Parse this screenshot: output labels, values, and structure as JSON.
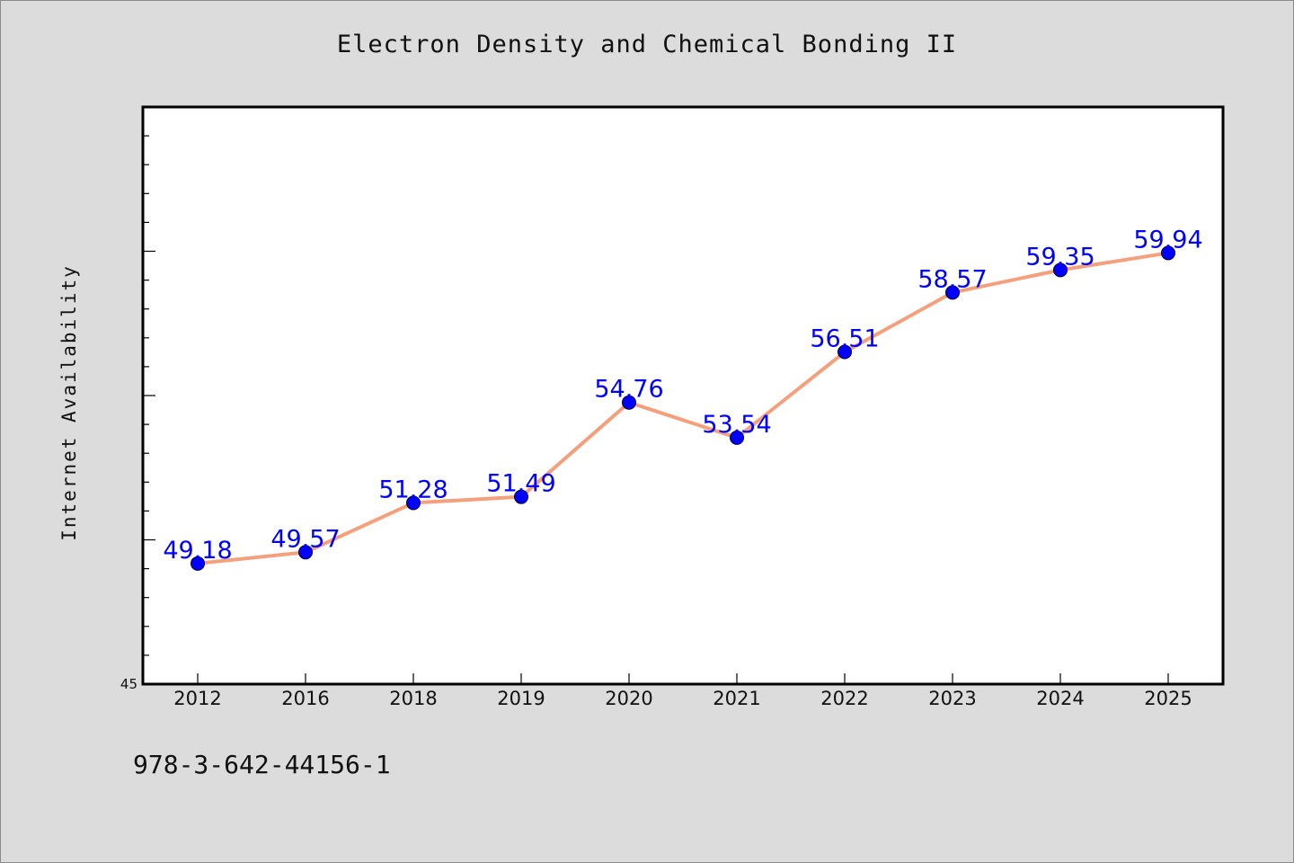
{
  "chart_data": {
    "type": "line",
    "title": "Electron Density and Chemical Bonding II",
    "xlabel": "",
    "ylabel": "Internet Availability",
    "categories": [
      "2012",
      "2016",
      "2018",
      "2019",
      "2020",
      "2021",
      "2022",
      "2023",
      "2024",
      "2025"
    ],
    "series": [
      {
        "values": [
          49.18,
          49.57,
          51.28,
          51.49,
          54.76,
          53.54,
          56.51,
          58.57,
          59.35,
          59.94
        ],
        "labels": [
          "49.18",
          "49.57",
          "51.28",
          "51.49",
          "54.76",
          "53.54",
          "56.51",
          "58.57",
          "59.35",
          "59.94"
        ]
      }
    ],
    "ylim": [
      45,
      65
    ],
    "ytick_labels": [
      "45"
    ],
    "line_color": "#f4a07c",
    "marker_color": "#0000ff",
    "label_color": "#0000ff",
    "grid": false,
    "legend": "none"
  },
  "footer": {
    "isbn": "978-3-642-44156-1"
  }
}
